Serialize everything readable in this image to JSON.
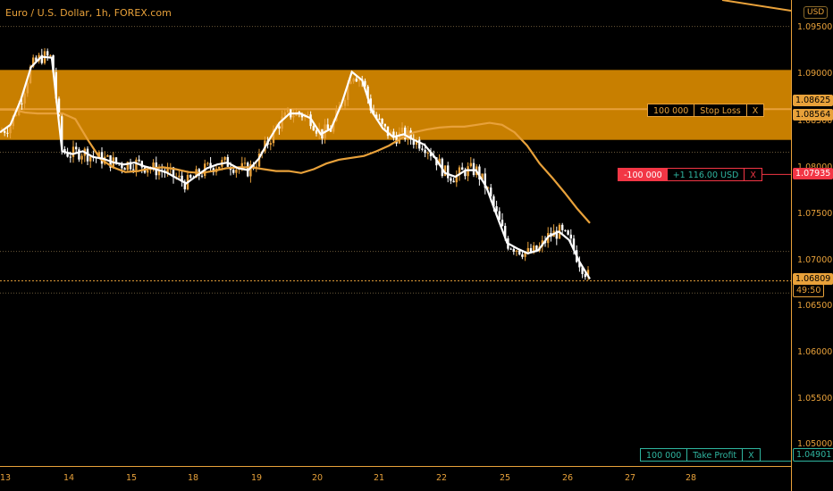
{
  "symbol": {
    "title": "Euro / U.S. Dollar, 1h, FOREX.com"
  },
  "price_axis": {
    "currency": "USD",
    "ticks": [
      "1.09500",
      "1.09000",
      "1.08500",
      "1.08000",
      "1.07500",
      "1.07000",
      "1.06500",
      "1.06000",
      "1.05500",
      "1.05000"
    ]
  },
  "time_axis": {
    "ticks": [
      "13",
      "14",
      "15",
      "18",
      "19",
      "20",
      "21",
      "22",
      "25",
      "26",
      "27",
      "28"
    ]
  },
  "price_tags": {
    "stop_loss_price": "1.08625",
    "ema_price": "1.08564",
    "position_price": "1.07935",
    "last_price": "1.06809",
    "countdown": "49:50",
    "take_profit_price": "1.04901"
  },
  "orders": {
    "stop_loss": {
      "qty": "100 000",
      "label": "Stop Loss",
      "close": "X"
    },
    "position": {
      "qty": "-100 000",
      "pnl": "+1 116.00 USD",
      "close": "X"
    },
    "take_profit": {
      "qty": "100 000",
      "label": "Take Profit",
      "close": "X"
    }
  },
  "colors": {
    "background": "#000000",
    "accent": "#e8a13a",
    "zone": "#d98a00",
    "candle_up": "#e8a13a",
    "candle_down": "#ffffff",
    "fast_ma": "#ffffff",
    "slow_ma": "#e8a13a",
    "loss": "#f23645",
    "profit": "#2fb5a0"
  },
  "chart_data": {
    "type": "candlestick",
    "instrument": "EUR/USD",
    "timeframe": "1h",
    "ylim": [
      1.0485,
      1.0978
    ],
    "y_ticks": [
      1.095,
      1.09,
      1.085,
      1.08,
      1.075,
      1.07,
      1.065,
      1.06,
      1.055,
      1.05
    ],
    "x_ticks": [
      "13",
      "14",
      "15",
      "18",
      "19",
      "20",
      "21",
      "22",
      "25",
      "26",
      "27",
      "28"
    ],
    "resistance_zone": [
      1.083,
      1.0904
    ],
    "stop_loss": 1.08625,
    "position_entry": 1.07935,
    "take_profit": 1.04901,
    "last_price": 1.06809,
    "fast_ma": [
      1.0838,
      1.0846,
      1.0872,
      1.0907,
      1.0918,
      1.0917,
      1.0818,
      1.0815,
      1.0818,
      1.0812,
      1.081,
      1.0806,
      1.0804,
      1.0806,
      1.0802,
      1.0799,
      1.0796,
      1.079,
      1.0784,
      1.0792,
      1.08,
      1.0804,
      1.0806,
      1.08,
      1.0798,
      1.081,
      1.083,
      1.0848,
      1.0858,
      1.0858,
      1.0853,
      1.0836,
      1.0842,
      1.0868,
      1.0902,
      1.0893,
      1.0859,
      1.0842,
      1.0833,
      1.0836,
      1.083,
      1.0825,
      1.0812,
      1.0795,
      1.0791,
      1.0798,
      1.0798,
      1.078,
      1.075,
      1.0721,
      1.0715,
      1.071,
      1.0713,
      1.0728,
      1.0733,
      1.0724,
      1.0701,
      1.0683
    ],
    "slow_ma": [
      1.0862,
      1.0862,
      1.0859,
      1.0858,
      1.0858,
      1.0858,
      1.0852,
      1.083,
      1.081,
      1.0801,
      1.0796,
      1.0797,
      1.08,
      1.0801,
      1.0799,
      1.0796,
      1.0795,
      1.0797,
      1.08,
      1.0801,
      1.0801,
      1.0799,
      1.0797,
      1.0797,
      1.0795,
      1.0799,
      1.0805,
      1.0809,
      1.0811,
      1.0813,
      1.0818,
      1.0824,
      1.0832,
      1.0838,
      1.0841,
      1.0843,
      1.0844,
      1.0844,
      1.0846,
      1.0848,
      1.0846,
      1.0838,
      1.0824,
      1.0805,
      1.079,
      1.0774,
      1.0757,
      1.0742
    ]
  }
}
